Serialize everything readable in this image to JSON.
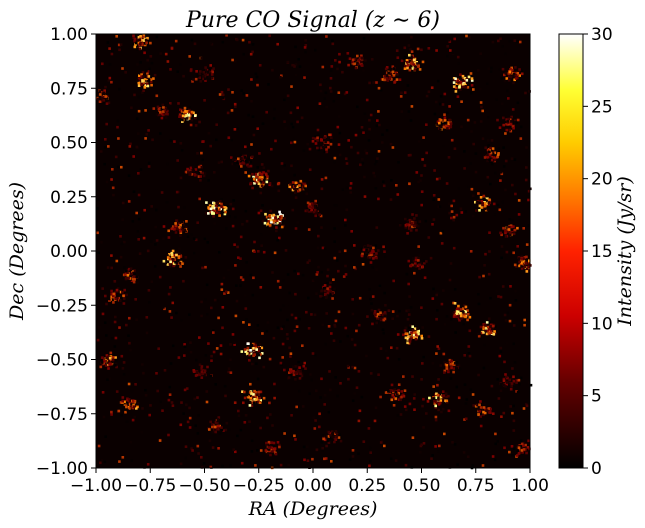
{
  "chart_data": {
    "type": "heatmap",
    "title": "Pure CO Signal (z ∼ 6)",
    "xlabel": "RA (Degrees)",
    "ylabel": "Dec (Degrees)",
    "xlim": [
      -1.0,
      1.0
    ],
    "ylim": [
      -1.0,
      1.0
    ],
    "x_ticks": [
      "−1.00",
      "−0.75",
      "−0.50",
      "−0.25",
      "0.00",
      "0.25",
      "0.50",
      "0.75",
      "1.00"
    ],
    "y_ticks": [
      "−1.00",
      "−0.75",
      "−0.50",
      "−0.25",
      "0.00",
      "0.25",
      "0.50",
      "0.75",
      "1.00"
    ],
    "colorbar": {
      "label": "Intensity (Jy/sr)",
      "range": [
        0,
        30
      ],
      "ticks": [
        "0",
        "5",
        "10",
        "15",
        "20",
        "25",
        "30"
      ],
      "colormap": "afmhot"
    },
    "grid": false,
    "clusters": [
      {
        "ra": -0.8,
        "dec": 0.97,
        "peak": 20
      },
      {
        "ra": -0.78,
        "dec": 0.79,
        "peak": 22
      },
      {
        "ra": -0.98,
        "dec": 0.72,
        "peak": 14
      },
      {
        "ra": -0.7,
        "dec": 0.65,
        "peak": 12
      },
      {
        "ra": -0.58,
        "dec": 0.63,
        "peak": 26
      },
      {
        "ra": -0.5,
        "dec": 0.82,
        "peak": 10
      },
      {
        "ra": 0.2,
        "dec": 0.88,
        "peak": 12
      },
      {
        "ra": 0.35,
        "dec": 0.82,
        "peak": 14
      },
      {
        "ra": 0.45,
        "dec": 0.87,
        "peak": 22
      },
      {
        "ra": 0.68,
        "dec": 0.78,
        "peak": 28
      },
      {
        "ra": 0.92,
        "dec": 0.82,
        "peak": 16
      },
      {
        "ra": 0.6,
        "dec": 0.6,
        "peak": 16
      },
      {
        "ra": 0.82,
        "dec": 0.45,
        "peak": 14
      },
      {
        "ra": -0.55,
        "dec": 0.37,
        "peak": 12
      },
      {
        "ra": -0.33,
        "dec": 0.42,
        "peak": 12
      },
      {
        "ra": -0.25,
        "dec": 0.33,
        "peak": 26
      },
      {
        "ra": -0.08,
        "dec": 0.3,
        "peak": 18
      },
      {
        "ra": 0.05,
        "dec": 0.5,
        "peak": 10
      },
      {
        "ra": -0.45,
        "dec": 0.2,
        "peak": 28
      },
      {
        "ra": -0.62,
        "dec": 0.12,
        "peak": 14
      },
      {
        "ra": -0.18,
        "dec": 0.15,
        "peak": 30
      },
      {
        "ra": 0.0,
        "dec": 0.2,
        "peak": 10
      },
      {
        "ra": 0.45,
        "dec": 0.13,
        "peak": 12
      },
      {
        "ra": 0.78,
        "dec": 0.23,
        "peak": 22
      },
      {
        "ra": 0.9,
        "dec": 0.1,
        "peak": 14
      },
      {
        "ra": -0.65,
        "dec": -0.03,
        "peak": 24
      },
      {
        "ra": -0.85,
        "dec": -0.1,
        "peak": 14
      },
      {
        "ra": 0.48,
        "dec": -0.05,
        "peak": 10
      },
      {
        "ra": 0.97,
        "dec": -0.05,
        "peak": 18
      },
      {
        "ra": -0.92,
        "dec": -0.2,
        "peak": 14
      },
      {
        "ra": 0.07,
        "dec": -0.18,
        "peak": 10
      },
      {
        "ra": 0.68,
        "dec": -0.28,
        "peak": 24
      },
      {
        "ra": 0.8,
        "dec": -0.35,
        "peak": 26
      },
      {
        "ra": 0.3,
        "dec": -0.3,
        "peak": 12
      },
      {
        "ra": 0.45,
        "dec": -0.38,
        "peak": 28
      },
      {
        "ra": -0.28,
        "dec": -0.45,
        "peak": 30
      },
      {
        "ra": -0.95,
        "dec": -0.5,
        "peak": 18
      },
      {
        "ra": 0.62,
        "dec": -0.52,
        "peak": 14
      },
      {
        "ra": -0.28,
        "dec": -0.67,
        "peak": 26
      },
      {
        "ra": -0.85,
        "dec": -0.7,
        "peak": 18
      },
      {
        "ra": 0.58,
        "dec": -0.67,
        "peak": 24
      },
      {
        "ra": 0.78,
        "dec": -0.73,
        "peak": 14
      },
      {
        "ra": 0.38,
        "dec": -0.65,
        "peak": 14
      },
      {
        "ra": -0.08,
        "dec": -0.55,
        "peak": 10
      },
      {
        "ra": -0.52,
        "dec": -0.55,
        "peak": 10
      },
      {
        "ra": 0.08,
        "dec": -0.85,
        "peak": 14
      },
      {
        "ra": -0.2,
        "dec": -0.9,
        "peak": 12
      },
      {
        "ra": -0.45,
        "dec": -0.8,
        "peak": 12
      },
      {
        "ra": 0.95,
        "dec": -0.9,
        "peak": 12
      },
      {
        "ra": 0.9,
        "dec": -0.6,
        "peak": 12
      },
      {
        "ra": 0.25,
        "dec": 0.0,
        "peak": 12
      },
      {
        "ra": 0.9,
        "dec": 0.6,
        "peak": 10
      }
    ]
  }
}
